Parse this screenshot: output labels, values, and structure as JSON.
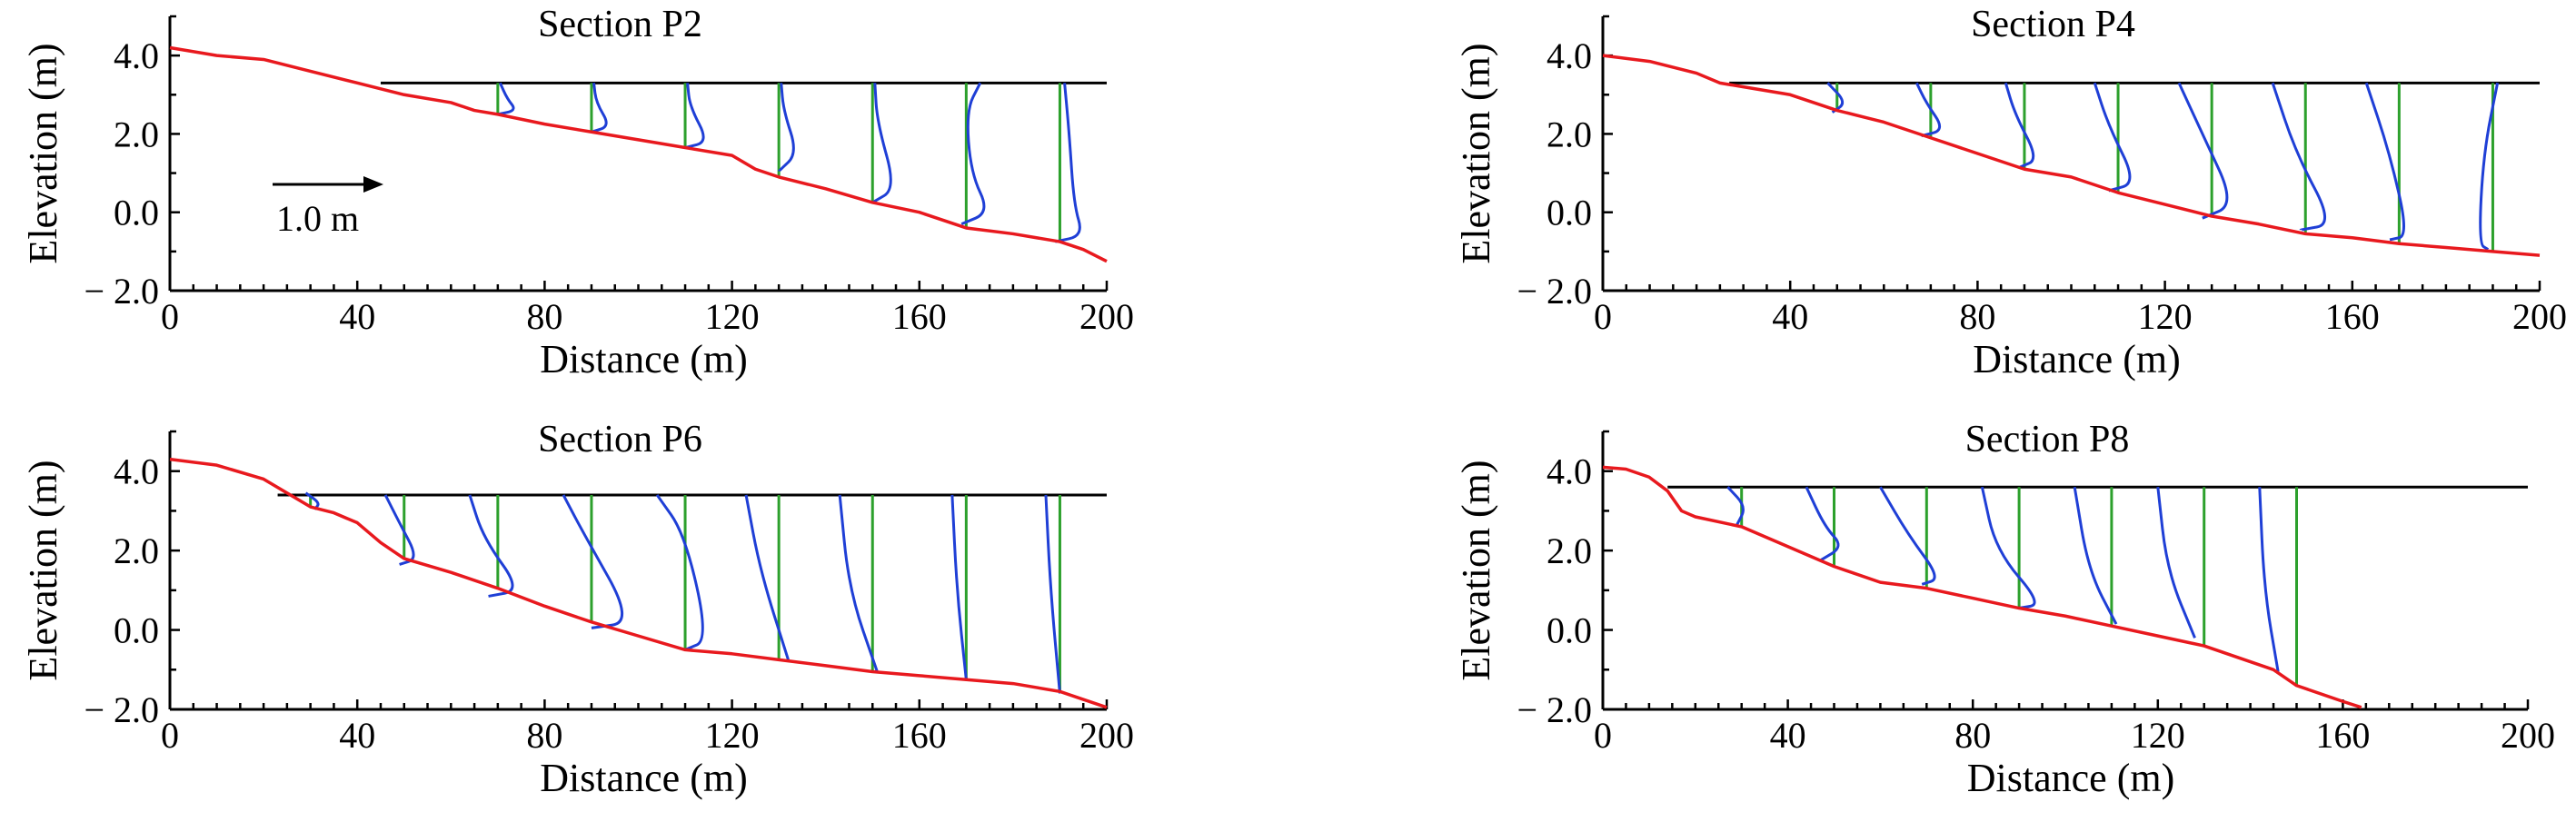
{
  "figure": {
    "colors": {
      "bed": "#e8191e",
      "water": "#000000",
      "station": "#2ca02c",
      "profile": "#1f3fd6"
    }
  },
  "chart_data": [
    {
      "type": "line",
      "title": "Section P2",
      "xlabel": "Distance (m)",
      "ylabel": "Elevation (m)",
      "xlim": [
        0,
        200
      ],
      "ylim": [
        -2.0,
        5.0
      ],
      "xticks": [
        "0",
        "40",
        "80",
        "120",
        "160",
        "200"
      ],
      "yticks": [
        "− 2.0",
        "0.0",
        "2.0",
        "4.0"
      ],
      "annotation": "1.0 m",
      "water_level": {
        "x": [
          45,
          200
        ],
        "y": 3.3
      },
      "bed": {
        "x": [
          0,
          10,
          20,
          30,
          40,
          50,
          60,
          65,
          70,
          80,
          90,
          100,
          110,
          120,
          125,
          130,
          140,
          150,
          160,
          170,
          180,
          190,
          195,
          200
        ],
        "y": [
          4.2,
          4.0,
          3.9,
          3.6,
          3.3,
          3.0,
          2.8,
          2.6,
          2.5,
          2.25,
          2.05,
          1.85,
          1.65,
          1.45,
          1.1,
          0.9,
          0.6,
          0.25,
          0.0,
          -0.4,
          -0.55,
          -0.75,
          -0.95,
          -1.25
        ]
      },
      "stations": [
        {
          "x": 70,
          "profile": [
            [
              70.5,
              3.3
            ],
            [
              72,
              2.9
            ],
            [
              74,
              2.6
            ],
            [
              70,
              2.5
            ]
          ]
        },
        {
          "x": 90,
          "profile": [
            [
              90.5,
              3.3
            ],
            [
              91,
              2.8
            ],
            [
              94,
              2.2
            ],
            [
              90,
              2.05
            ]
          ]
        },
        {
          "x": 110,
          "profile": [
            [
              110.5,
              3.3
            ],
            [
              111,
              2.7
            ],
            [
              115,
              1.8
            ],
            [
              110,
              1.65
            ]
          ]
        },
        {
          "x": 130,
          "profile": [
            [
              130.5,
              3.3
            ],
            [
              131,
              2.6
            ],
            [
              134,
              1.5
            ],
            [
              130,
              1.05
            ]
          ]
        },
        {
          "x": 150,
          "profile": [
            [
              150.5,
              3.3
            ],
            [
              151,
              2.3
            ],
            [
              155,
              0.6
            ],
            [
              150,
              0.25
            ]
          ]
        },
        {
          "x": 170,
          "profile": [
            [
              173,
              3.3
            ],
            [
              170,
              2.6
            ],
            [
              171,
              1.0
            ],
            [
              175,
              0.0
            ],
            [
              169,
              -0.3
            ]
          ]
        },
        {
          "x": 190,
          "profile": [
            [
              191,
              3.3
            ],
            [
              192,
              2.0
            ],
            [
              193,
              0.2
            ],
            [
              195,
              -0.6
            ],
            [
              189,
              -0.75
            ]
          ]
        }
      ]
    },
    {
      "type": "line",
      "title": "Section P4",
      "xlabel": "Distance (m)",
      "ylabel": "Elevation (m)",
      "xlim": [
        0,
        200
      ],
      "ylim": [
        -2.0,
        5.0
      ],
      "xticks": [
        "0",
        "40",
        "80",
        "120",
        "160",
        "200"
      ],
      "yticks": [
        "− 2.0",
        "0.0",
        "2.0",
        "4.0"
      ],
      "water_level": {
        "x": [
          27,
          200
        ],
        "y": 3.3
      },
      "bed": {
        "x": [
          0,
          10,
          20,
          25,
          30,
          40,
          50,
          60,
          70,
          80,
          90,
          100,
          110,
          120,
          130,
          140,
          150,
          160,
          170,
          180,
          190,
          200
        ],
        "y": [
          4.0,
          3.85,
          3.55,
          3.3,
          3.2,
          3.0,
          2.6,
          2.3,
          1.9,
          1.5,
          1.1,
          0.9,
          0.5,
          0.2,
          -0.1,
          -0.3,
          -0.55,
          -0.65,
          -0.8,
          -0.9,
          -1.0,
          -1.1
        ]
      },
      "stations": [
        {
          "x": 50,
          "profile": [
            [
              48,
              3.3
            ],
            [
              52,
              2.8
            ],
            [
              49,
              2.55
            ]
          ]
        },
        {
          "x": 70,
          "profile": [
            [
              67,
              3.3
            ],
            [
              69,
              2.8
            ],
            [
              73,
              2.1
            ],
            [
              68,
              1.95
            ]
          ]
        },
        {
          "x": 90,
          "profile": [
            [
              86,
              3.3
            ],
            [
              88,
              2.5
            ],
            [
              93,
              1.35
            ],
            [
              89,
              1.15
            ]
          ]
        },
        {
          "x": 110,
          "profile": [
            [
              105,
              3.3
            ],
            [
              108,
              2.2
            ],
            [
              114,
              0.75
            ],
            [
              108,
              0.55
            ]
          ]
        },
        {
          "x": 130,
          "profile": [
            [
              123,
              3.3
            ],
            [
              128,
              2.0
            ],
            [
              135,
              0.2
            ],
            [
              128,
              -0.15
            ]
          ]
        },
        {
          "x": 150,
          "profile": [
            [
              143,
              3.3
            ],
            [
              148,
              1.5
            ],
            [
              156,
              -0.3
            ],
            [
              149,
              -0.45
            ]
          ]
        },
        {
          "x": 170,
          "profile": [
            [
              163,
              3.3
            ],
            [
              168,
              1.5
            ],
            [
              172,
              -0.6
            ],
            [
              168,
              -0.7
            ]
          ]
        },
        {
          "x": 190,
          "profile": [
            [
              191,
              3.3
            ],
            [
              188,
              1.5
            ],
            [
              187,
              -0.8
            ],
            [
              189,
              -0.95
            ]
          ]
        }
      ]
    },
    {
      "type": "line",
      "title": "Section P6",
      "xlabel": "Distance (m)",
      "ylabel": "Elevation (m)",
      "xlim": [
        0,
        200
      ],
      "ylim": [
        -2.0,
        5.0
      ],
      "xticks": [
        "0",
        "40",
        "80",
        "120",
        "160",
        "200"
      ],
      "yticks": [
        "− 2.0",
        "0.0",
        "2.0",
        "4.0"
      ],
      "water_level": {
        "x": [
          23,
          200
        ],
        "y": 3.4
      },
      "bed": {
        "x": [
          0,
          10,
          20,
          25,
          30,
          35,
          40,
          45,
          50,
          60,
          70,
          80,
          90,
          100,
          110,
          120,
          130,
          140,
          150,
          160,
          170,
          180,
          190,
          200
        ],
        "y": [
          4.3,
          4.15,
          3.8,
          3.45,
          3.1,
          2.95,
          2.7,
          2.2,
          1.8,
          1.45,
          1.05,
          0.6,
          0.2,
          -0.15,
          -0.5,
          -0.6,
          -0.75,
          -0.9,
          -1.05,
          -1.15,
          -1.25,
          -1.35,
          -1.55,
          -1.95
        ]
      },
      "stations": [
        {
          "x": 30,
          "profile": [
            [
              29,
              3.45
            ],
            [
              32,
              3.2
            ],
            [
              31,
              3.05
            ]
          ]
        },
        {
          "x": 50,
          "profile": [
            [
              46,
              3.4
            ],
            [
              49,
              2.7
            ],
            [
              53,
              1.8
            ],
            [
              49,
              1.65
            ]
          ]
        },
        {
          "x": 70,
          "profile": [
            [
              64,
              3.4
            ],
            [
              67,
              2.3
            ],
            [
              75,
              1.0
            ],
            [
              68,
              0.85
            ]
          ]
        },
        {
          "x": 90,
          "profile": [
            [
              84,
              3.4
            ],
            [
              88,
              2.5
            ],
            [
              99,
              0.2
            ],
            [
              90,
              0.05
            ]
          ]
        },
        {
          "x": 110,
          "profile": [
            [
              104,
              3.4
            ],
            [
              110,
              2.4
            ],
            [
              115,
              -0.25
            ],
            [
              110,
              -0.5
            ]
          ]
        },
        {
          "x": 130,
          "profile": [
            [
              123,
              3.4
            ],
            [
              126,
              1.5
            ],
            [
              132,
              -0.75
            ]
          ]
        },
        {
          "x": 150,
          "profile": [
            [
              143,
              3.4
            ],
            [
              145,
              1.0
            ],
            [
              151,
              -1.05
            ]
          ]
        },
        {
          "x": 170,
          "profile": [
            [
              167,
              3.4
            ],
            [
              168,
              1.0
            ],
            [
              170,
              -1.25
            ]
          ]
        },
        {
          "x": 190,
          "profile": [
            [
              187,
              3.4
            ],
            [
              188,
              1.0
            ],
            [
              190,
              -1.6
            ]
          ]
        }
      ]
    },
    {
      "type": "line",
      "title": "Section P8",
      "xlabel": "Distance (m)",
      "ylabel": "Elevation (m)",
      "xlim": [
        0,
        200
      ],
      "ylim": [
        -2.0,
        5.0
      ],
      "xticks": [
        "0",
        "40",
        "80",
        "120",
        "160",
        "200"
      ],
      "yticks": [
        "− 2.0",
        "0.0",
        "2.0",
        "4.0"
      ],
      "water_level": {
        "x": [
          14,
          200
        ],
        "y": 3.6
      },
      "bed": {
        "x": [
          0,
          5,
          10,
          14,
          17,
          20,
          30,
          40,
          50,
          60,
          70,
          80,
          90,
          100,
          110,
          120,
          130,
          140,
          145,
          150,
          160,
          164
        ],
        "y": [
          4.1,
          4.05,
          3.85,
          3.5,
          3.0,
          2.85,
          2.6,
          2.1,
          1.6,
          1.2,
          1.05,
          0.8,
          0.55,
          0.35,
          0.1,
          -0.15,
          -0.4,
          -0.8,
          -1.0,
          -1.4,
          -1.8,
          -1.95
        ]
      },
      "stations": [
        {
          "x": 30,
          "profile": [
            [
              27,
              3.6
            ],
            [
              31,
              3.1
            ],
            [
              29,
              2.65
            ]
          ]
        },
        {
          "x": 50,
          "profile": [
            [
              44,
              3.6
            ],
            [
              48,
              2.6
            ],
            [
              52,
              2.1
            ],
            [
              47,
              1.75
            ]
          ]
        },
        {
          "x": 70,
          "profile": [
            [
              60,
              3.6
            ],
            [
              66,
              2.4
            ],
            [
              73,
              1.3
            ],
            [
              69,
              1.15
            ]
          ]
        },
        {
          "x": 90,
          "profile": [
            [
              82,
              3.6
            ],
            [
              85,
              2.0
            ],
            [
              95,
              0.65
            ],
            [
              90,
              0.55
            ]
          ]
        },
        {
          "x": 110,
          "profile": [
            [
              102,
              3.6
            ],
            [
              105,
              1.5
            ],
            [
              111,
              0.15
            ]
          ]
        },
        {
          "x": 130,
          "profile": [
            [
              120,
              3.6
            ],
            [
              122,
              1.5
            ],
            [
              128,
              -0.2
            ]
          ]
        },
        {
          "x": 150,
          "profile": [
            [
              142,
              3.6
            ],
            [
              143,
              1.0
            ],
            [
              146,
              -1.05
            ]
          ]
        }
      ]
    }
  ]
}
